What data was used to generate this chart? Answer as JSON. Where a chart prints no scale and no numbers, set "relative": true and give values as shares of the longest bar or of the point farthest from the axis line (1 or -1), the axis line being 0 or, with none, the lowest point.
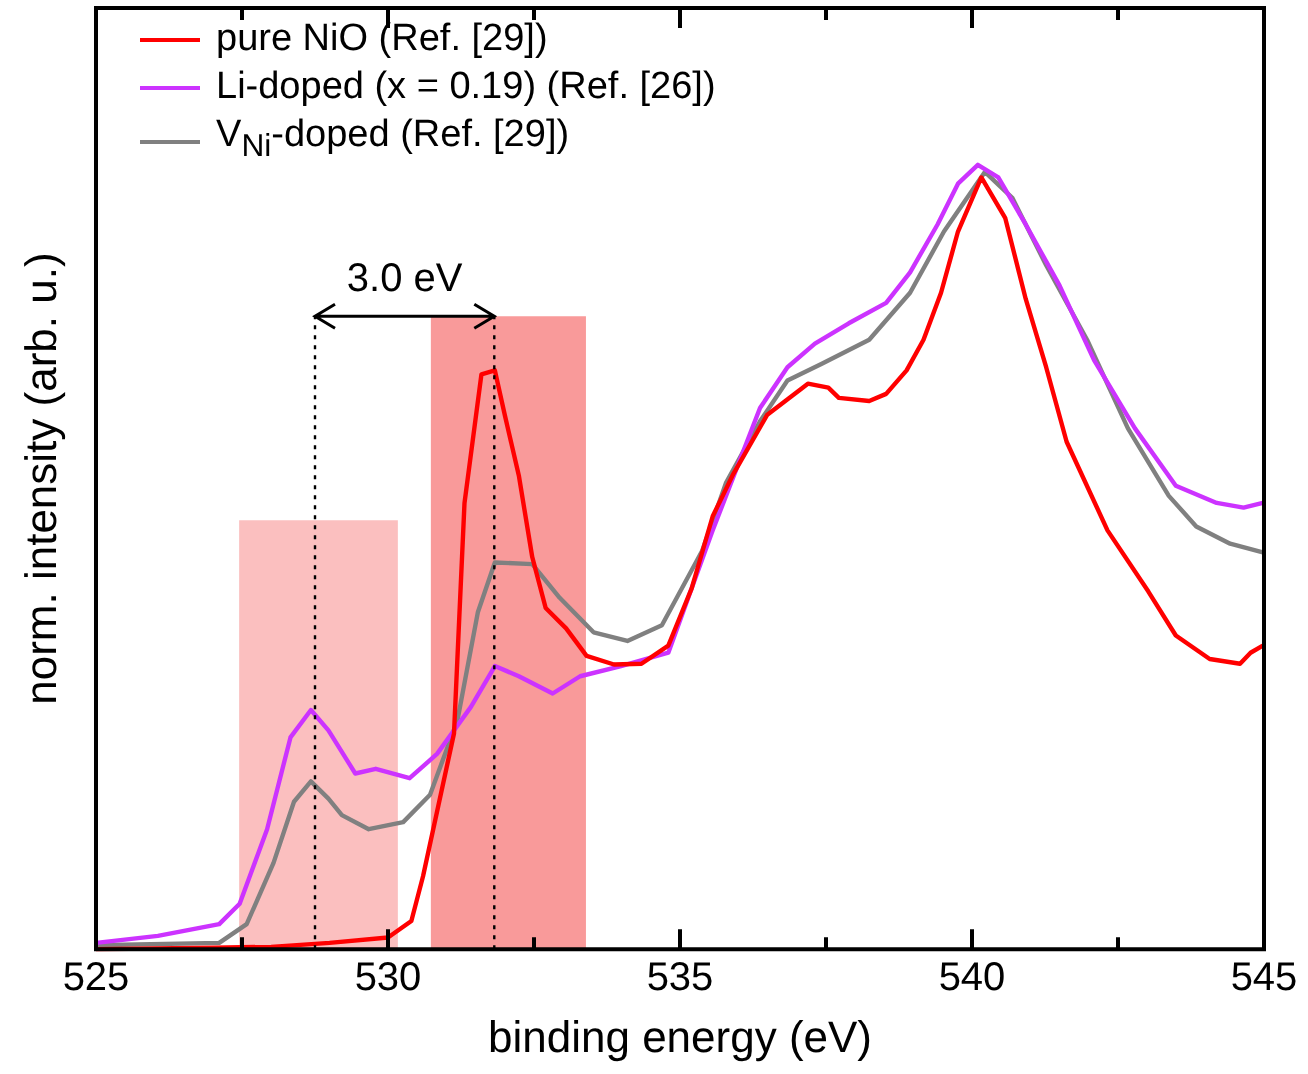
{
  "chart_data": {
    "type": "line",
    "relative": true,
    "xlabel": "binding energy (eV)",
    "ylabel": "norm. intensity (arb. u.)",
    "xlim": [
      525,
      545
    ],
    "xticks": [
      525,
      {
        "value": 527.5,
        "label": null
      },
      530,
      {
        "value": 532.5,
        "label": null
      },
      535,
      {
        "value": 537.5,
        "label": null
      },
      540,
      {
        "value": 542.5,
        "label": null
      },
      545
    ],
    "legend": "top left",
    "line_style": "solid",
    "marker": "none",
    "series": [
      {
        "name": "pure NiO (Ref. [29])",
        "color": "#ff0000",
        "x": [
          525,
          527,
          528,
          529,
          530,
          530.4,
          530.6,
          531.13,
          531.31,
          531.6,
          531.83,
          532.0,
          532.24,
          532.47,
          532.7,
          533.05,
          533.4,
          533.87,
          534.34,
          534.8,
          535.2,
          535.56,
          535.9,
          536.49,
          537.19,
          537.54,
          537.72,
          538.24,
          538.53,
          538.88,
          539.17,
          539.47,
          539.76,
          540.16,
          540.57,
          540.92,
          541.27,
          541.62,
          542.32,
          543.02,
          543.49,
          544.07,
          544.59,
          544.77,
          544.98
        ],
        "values": [
          0.0,
          0.002,
          0.003,
          0.008,
          0.015,
          0.036,
          0.093,
          0.275,
          0.569,
          0.733,
          0.738,
          0.681,
          0.604,
          0.5,
          0.435,
          0.409,
          0.374,
          0.363,
          0.364,
          0.387,
          0.46,
          0.552,
          0.604,
          0.681,
          0.721,
          0.716,
          0.703,
          0.699,
          0.708,
          0.738,
          0.777,
          0.837,
          0.915,
          0.984,
          0.932,
          0.829,
          0.742,
          0.647,
          0.534,
          0.456,
          0.4,
          0.37,
          0.364,
          0.378,
          0.387
        ]
      },
      {
        "name": "Li-doped (x = 0.19) (Ref. [26])",
        "color": "#cc33ff",
        "x": [
          525,
          526.06,
          527.11,
          527.46,
          527.93,
          528.33,
          528.68,
          528.98,
          529.44,
          529.79,
          530.37,
          530.84,
          531.42,
          531.83,
          532.24,
          532.82,
          533.29,
          533.99,
          534.8,
          535.56,
          536.37,
          536.84,
          537.31,
          537.89,
          538.53,
          538.94,
          539.41,
          539.76,
          540.1,
          540.45,
          540.92,
          541.5,
          542.09,
          542.79,
          543.49,
          544.19,
          544.65,
          544.98
        ],
        "values": [
          0.008,
          0.017,
          0.032,
          0.058,
          0.153,
          0.27,
          0.305,
          0.279,
          0.224,
          0.23,
          0.218,
          0.249,
          0.309,
          0.361,
          0.348,
          0.326,
          0.348,
          0.361,
          0.378,
          0.534,
          0.69,
          0.742,
          0.772,
          0.798,
          0.824,
          0.863,
          0.924,
          0.976,
          1.0,
          0.984,
          0.924,
          0.846,
          0.751,
          0.664,
          0.591,
          0.569,
          0.563,
          0.569
        ]
      },
      {
        "name": "V$_{Ni}$-doped (Ref. [29])",
        "color": "#808080",
        "x": [
          525,
          527.11,
          527.58,
          528.04,
          528.39,
          528.68,
          528.98,
          529.21,
          529.67,
          530.26,
          530.72,
          531.19,
          531.54,
          531.83,
          532.47,
          532.94,
          533.52,
          534.1,
          534.69,
          535.38,
          535.79,
          536.37,
          536.84,
          537.42,
          538.24,
          538.94,
          539.52,
          540.22,
          540.69,
          541.27,
          541.97,
          542.67,
          543.37,
          543.84,
          544.42,
          544.98
        ],
        "values": [
          0.005,
          0.008,
          0.032,
          0.11,
          0.188,
          0.214,
          0.192,
          0.171,
          0.153,
          0.162,
          0.197,
          0.292,
          0.43,
          0.493,
          0.491,
          0.448,
          0.404,
          0.393,
          0.413,
          0.508,
          0.595,
          0.673,
          0.725,
          0.746,
          0.777,
          0.837,
          0.915,
          0.991,
          0.958,
          0.872,
          0.777,
          0.664,
          0.578,
          0.539,
          0.517,
          0.506
        ]
      },
      {
        "type": "area",
        "color": "#fbbfbf",
        "x": [
          527.45,
          530.17
        ],
        "values": [
          0.547,
          0.547
        ]
      },
      {
        "type": "area",
        "color": "#f99a9a",
        "x": [
          530.73,
          533.39
        ],
        "values": [
          0.807,
          0.807
        ]
      }
    ],
    "ref_lines": [
      {
        "axis": "x",
        "value": 528.75,
        "color": "#000000",
        "line_style": "dotted"
      },
      {
        "axis": "x",
        "value": 531.82,
        "color": "#000000",
        "line_style": "dotted"
      }
    ],
    "annotations": [
      "3.0 eV"
    ]
  }
}
